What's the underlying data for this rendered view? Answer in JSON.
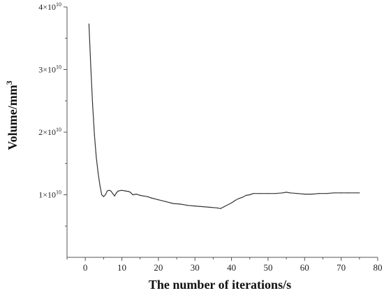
{
  "chart_data": {
    "type": "line",
    "xlabel": "The number of iterations/s",
    "ylabel": "Volume/mm",
    "ylabel_superscript": "3",
    "xlim": [
      -5,
      80
    ],
    "ylim": [
      0,
      40000000000.0
    ],
    "x_ticks": [
      0,
      10,
      20,
      30,
      40,
      50,
      60,
      70,
      80
    ],
    "x_tick_labels": [
      "0",
      "10",
      "20",
      "30",
      "40",
      "50",
      "60",
      "70",
      "80"
    ],
    "y_ticks": [
      10000000000.0,
      20000000000.0,
      30000000000.0,
      40000000000.0
    ],
    "y_tick_mantissa": [
      "1",
      "2",
      "3",
      "4"
    ],
    "y_tick_base": "×10",
    "y_tick_exponent": "10",
    "grid": false,
    "line_color": "#333333",
    "series": [
      {
        "x": [
          1,
          1.5,
          2,
          2.5,
          3,
          3.5,
          4,
          4.5,
          5,
          5.5,
          6,
          6.5,
          7,
          7.5,
          8,
          8.5,
          9,
          10,
          11,
          12,
          12.5,
          13,
          14,
          15,
          16,
          17,
          18,
          20,
          22,
          24,
          26,
          28,
          30,
          32,
          34,
          36,
          37,
          38,
          40,
          41,
          42,
          43,
          44,
          45,
          46,
          48,
          50,
          52,
          54,
          55,
          56,
          58,
          60,
          62,
          64,
          66,
          68,
          70,
          72,
          75
        ],
        "y": [
          37300000000.0,
          30500000000.0,
          24500000000.0,
          19500000000.0,
          16000000000.0,
          13500000000.0,
          11500000000.0,
          10000000000.0,
          9700000000.0,
          10000000000.0,
          10600000000.0,
          10700000000.0,
          10600000000.0,
          10200000000.0,
          9800000000.0,
          10300000000.0,
          10600000000.0,
          10700000000.0,
          10600000000.0,
          10500000000.0,
          10300000000.0,
          10000000000.0,
          10100000000.0,
          9900000000.0,
          9800000000.0,
          9700000000.0,
          9500000000.0,
          9200000000.0,
          8900000000.0,
          8600000000.0,
          8500000000.0,
          8300000000.0,
          8200000000.0,
          8100000000.0,
          8000000000.0,
          7900000000.0,
          7800000000.0,
          8100000000.0,
          8700000000.0,
          9100000000.0,
          9400000000.0,
          9600000000.0,
          9900000000.0,
          10000000000.0,
          10200000000.0,
          10200000000.0,
          10200000000.0,
          10200000000.0,
          10300000000.0,
          10400000000.0,
          10300000000.0,
          10200000000.0,
          10100000000.0,
          10100000000.0,
          10200000000.0,
          10200000000.0,
          10300000000.0,
          10300000000.0,
          10300000000.0,
          10300000000.0
        ]
      }
    ]
  }
}
